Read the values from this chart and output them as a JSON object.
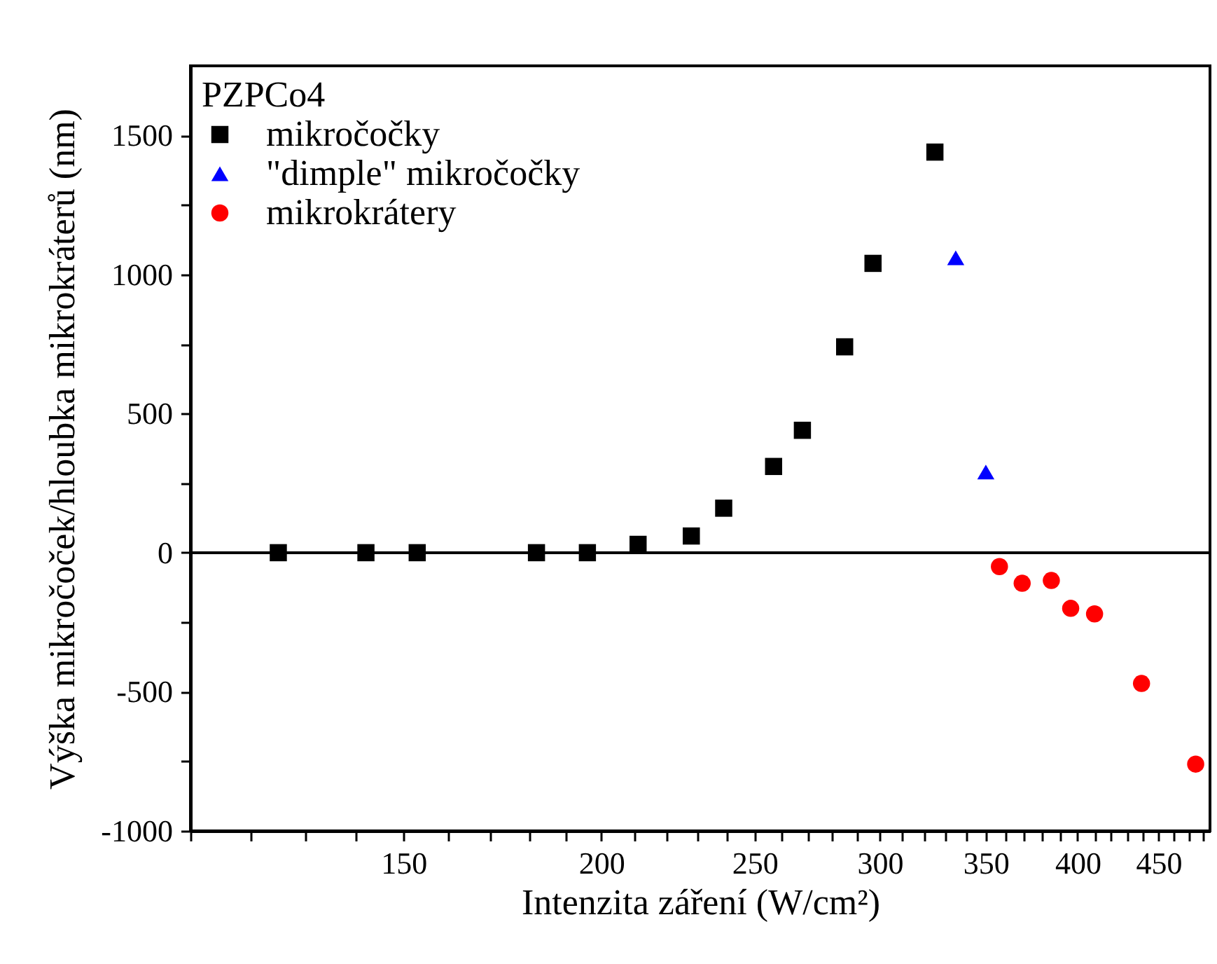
{
  "chart_data": {
    "type": "scatter",
    "xlabel": "Intenzita záření (W/cm²)",
    "ylabel": "Výška mikročoček/hloubka mikrokráterů (nm)",
    "legend_title": "PZPCo4",
    "legend": "top left",
    "log": "x",
    "grid": false,
    "xlim": [
      110,
      485
    ],
    "xticks": [
      {
        "value": 110,
        "label": null
      },
      {
        "value": 120,
        "label": null
      },
      {
        "value": 130,
        "label": null
      },
      {
        "value": 140,
        "label": null
      },
      150,
      {
        "value": 160,
        "label": null
      },
      {
        "value": 170,
        "label": null
      },
      {
        "value": 180,
        "label": null
      },
      {
        "value": 190,
        "label": null
      },
      200,
      {
        "value": 210,
        "label": null
      },
      {
        "value": 220,
        "label": null
      },
      {
        "value": 230,
        "label": null
      },
      {
        "value": 240,
        "label": null
      },
      250,
      {
        "value": 260,
        "label": null
      },
      {
        "value": 270,
        "label": null
      },
      {
        "value": 280,
        "label": null
      },
      {
        "value": 290,
        "label": null
      },
      300,
      {
        "value": 310,
        "label": null
      },
      {
        "value": 320,
        "label": null
      },
      {
        "value": 330,
        "label": null
      },
      {
        "value": 340,
        "label": null
      },
      350,
      {
        "value": 360,
        "label": null
      },
      {
        "value": 370,
        "label": null
      },
      {
        "value": 380,
        "label": null
      },
      {
        "value": 390,
        "label": null
      },
      400,
      {
        "value": 410,
        "label": null
      },
      {
        "value": 420,
        "label": null
      },
      {
        "value": 430,
        "label": null
      },
      {
        "value": 440,
        "label": null
      },
      450,
      {
        "value": 460,
        "label": null
      },
      {
        "value": 470,
        "label": null
      },
      {
        "value": 480,
        "label": null
      }
    ],
    "ylim": [
      -1000,
      1750
    ],
    "yticks": [
      -1000,
      {
        "value": -750,
        "label": null
      },
      -500,
      {
        "value": -250,
        "label": null
      },
      0,
      {
        "value": 250,
        "label": null
      },
      500,
      {
        "value": 750,
        "label": null
      },
      1000,
      {
        "value": 1250,
        "label": null
      },
      1500
    ],
    "ref_lines": [
      {
        "axis": "y",
        "value": 0,
        "color": "#000000"
      }
    ],
    "series": [
      {
        "name": "mikročočky",
        "color": "#000000",
        "marker": "square",
        "x": [
          125,
          142,
          153,
          182,
          196,
          211,
          228,
          239,
          257,
          268,
          285,
          297,
          325
        ],
        "values": [
          0,
          0,
          0,
          0,
          0,
          30,
          60,
          160,
          310,
          440,
          740,
          1040,
          1440
        ]
      },
      {
        "name": "\"dimple\" mikročočky",
        "color": "#0000ff",
        "marker": "triangle",
        "x": [
          335,
          350
        ],
        "values": [
          1060,
          290
        ]
      },
      {
        "name": "mikrokrátery",
        "color": "#ff0000",
        "marker": "circle",
        "x": [
          357,
          369,
          385,
          396,
          410,
          439,
          475
        ],
        "values": [
          -50,
          -110,
          -100,
          -200,
          -220,
          -470,
          -760
        ]
      }
    ]
  }
}
